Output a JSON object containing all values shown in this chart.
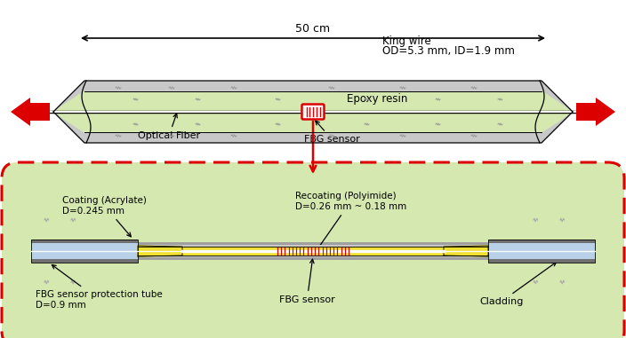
{
  "bg_color": "#ffffff",
  "green_fill": "#d4e8b0",
  "gray_light": "#c8c8c8",
  "gray_mid": "#a0a0a0",
  "gray_dark": "#707070",
  "blue_light": "#b8d0e8",
  "blue_mid": "#7090b8",
  "yellow_fill": "#f0e030",
  "yellow_outline": "#c8a000",
  "red_color": "#dd0000",
  "black": "#000000",
  "white": "#ffffff",
  "top_label_50cm": "50 cm",
  "top_label_kingwire": "King wire",
  "top_label_od": "OD=5.3 mm, ID=1.9 mm",
  "top_label_epoxy": "Epoxy resin",
  "top_label_fiber": "Optical Fiber",
  "top_label_fbg": "FBG sensor",
  "bot_label_coating": "Coating (Acrylate)\nD=0.245 mm",
  "bot_label_recoating": "Recoating (Polyimide)\nD=0.26 mm ~ 0.18 mm",
  "bot_label_protection": "FBG sensor protection tube\nD=0.9 mm",
  "bot_label_fbg": "FBG sensor",
  "bot_label_cladding": "Cladding"
}
